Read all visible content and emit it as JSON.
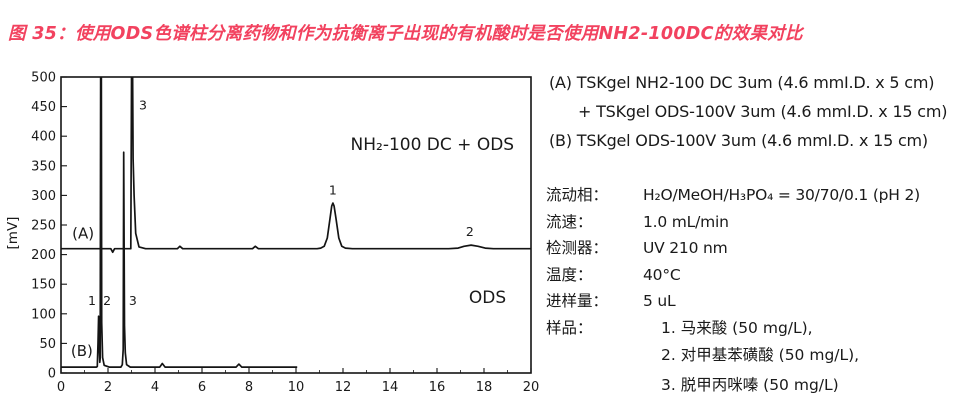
{
  "title": "图 35：使用ODS色谱柱分离药物和作为抗衡离子出现的有机酸时是否使用NH2-100DC的效果对比",
  "colors": {
    "title_red": "#f2425f",
    "trace_black": "#141414",
    "text": "#1a1a1a"
  },
  "panel": {
    "columns": [
      "(A) TSKgel NH2-100 DC 3um (4.6 mmI.D. x 5 cm)",
      "+ TSKgel ODS-100V 3um (4.6 mmI.D. x 15 cm)",
      "(B) TSKgel ODS-100V 3um (4.6 mmI.D. x 15 cm)"
    ],
    "conditions": [
      {
        "label": "流动相：",
        "value": "H₂O/MeOH/H₃PO₄ = 30/70/0.1 (pH 2)"
      },
      {
        "label": "流速：",
        "value": "1.0 mL/min"
      },
      {
        "label": "检测器：",
        "value": "UV 210 nm"
      },
      {
        "label": "温度：",
        "value": "40°C"
      },
      {
        "label": "进样量：",
        "value": "5 uL"
      },
      {
        "label": "样品：",
        "value": ""
      }
    ],
    "samples": [
      "1. 马来酸 (50 mg/L),",
      "2. 对甲基苯磺酸 (50 mg/L),",
      "3. 脱甲丙咪嗪 (50 mg/L)"
    ]
  },
  "chart_data": {
    "type": "line",
    "title": "",
    "xlabel": "",
    "ylabel": "[mV]",
    "xlim": [
      0,
      20
    ],
    "ylim": [
      0,
      500
    ],
    "grid": false,
    "x_ticks": [
      0,
      2,
      4,
      6,
      8,
      10,
      12,
      14,
      16,
      18,
      20
    ],
    "x_minor_ticks": [
      1,
      3,
      5,
      7,
      9,
      11,
      13,
      15,
      17,
      19
    ],
    "y_ticks": [
      0,
      50,
      100,
      150,
      200,
      250,
      300,
      350,
      400,
      450,
      500
    ],
    "series": [
      {
        "id": "A",
        "name": "(A) TSKgel NH2-100 DC + ODS-100V",
        "baseline_mV": 210,
        "points": [
          [
            0,
            210
          ],
          [
            2.12,
            210
          ],
          [
            2.2,
            204
          ],
          [
            2.28,
            210
          ],
          [
            2.97,
            210
          ],
          [
            3.01,
            565
          ],
          [
            3.04,
            565
          ],
          [
            3.07,
            362
          ],
          [
            3.11,
            300
          ],
          [
            3.18,
            236
          ],
          [
            3.32,
            213
          ],
          [
            3.6,
            210
          ],
          [
            4.95,
            210
          ],
          [
            5.06,
            214
          ],
          [
            5.18,
            210
          ],
          [
            8.15,
            210
          ],
          [
            8.27,
            214
          ],
          [
            8.4,
            210
          ],
          [
            10.9,
            210
          ],
          [
            11.05,
            211
          ],
          [
            11.2,
            214
          ],
          [
            11.33,
            228
          ],
          [
            11.45,
            262
          ],
          [
            11.52,
            282
          ],
          [
            11.57,
            287
          ],
          [
            11.62,
            282
          ],
          [
            11.7,
            262
          ],
          [
            11.82,
            228
          ],
          [
            11.95,
            214
          ],
          [
            12.1,
            211
          ],
          [
            12.4,
            210
          ],
          [
            16.5,
            210
          ],
          [
            16.9,
            211
          ],
          [
            17.15,
            214
          ],
          [
            17.45,
            216
          ],
          [
            17.75,
            214
          ],
          [
            18.05,
            211
          ],
          [
            18.4,
            210
          ],
          [
            20,
            210
          ]
        ]
      },
      {
        "id": "B",
        "name": "(B) TSKgel ODS-100V",
        "baseline_mV": 10,
        "points": [
          [
            0,
            10
          ],
          [
            1.5,
            10
          ],
          [
            1.545,
            11
          ],
          [
            1.575,
            50
          ],
          [
            1.6,
            96
          ],
          [
            1.62,
            50
          ],
          [
            1.65,
            18
          ],
          [
            1.668,
            25
          ],
          [
            1.69,
            565
          ],
          [
            1.715,
            565
          ],
          [
            1.73,
            85
          ],
          [
            1.77,
            26
          ],
          [
            1.84,
            13
          ],
          [
            2.05,
            10
          ],
          [
            2.55,
            10
          ],
          [
            2.61,
            14
          ],
          [
            2.645,
            40
          ],
          [
            2.67,
            373
          ],
          [
            2.7,
            80
          ],
          [
            2.735,
            34
          ],
          [
            2.79,
            14
          ],
          [
            2.95,
            10
          ],
          [
            4.2,
            10
          ],
          [
            4.31,
            16
          ],
          [
            4.43,
            10
          ],
          [
            7.45,
            10
          ],
          [
            7.57,
            15
          ],
          [
            7.69,
            10
          ],
          [
            10.05,
            10
          ]
        ]
      }
    ],
    "annotations": [
      {
        "text": "NH₂-100 DC + ODS",
        "x": 15.8,
        "y": 385,
        "size": 17
      },
      {
        "text": "ODS",
        "x": 18.15,
        "y": 127,
        "size": 17
      },
      {
        "text": "(A)",
        "x": 0.94,
        "y": 236,
        "size": 15
      },
      {
        "text": "(B)",
        "x": 0.89,
        "y": 37,
        "size": 15
      }
    ],
    "peak_labels": [
      {
        "text": "3",
        "x": 3.49,
        "y": 452
      },
      {
        "text": "1",
        "x": 11.57,
        "y": 308
      },
      {
        "text": "2",
        "x": 17.4,
        "y": 238
      },
      {
        "text": "1",
        "x": 1.32,
        "y": 122
      },
      {
        "text": "2",
        "x": 1.96,
        "y": 122
      },
      {
        "text": "3",
        "x": 3.06,
        "y": 122
      }
    ]
  }
}
